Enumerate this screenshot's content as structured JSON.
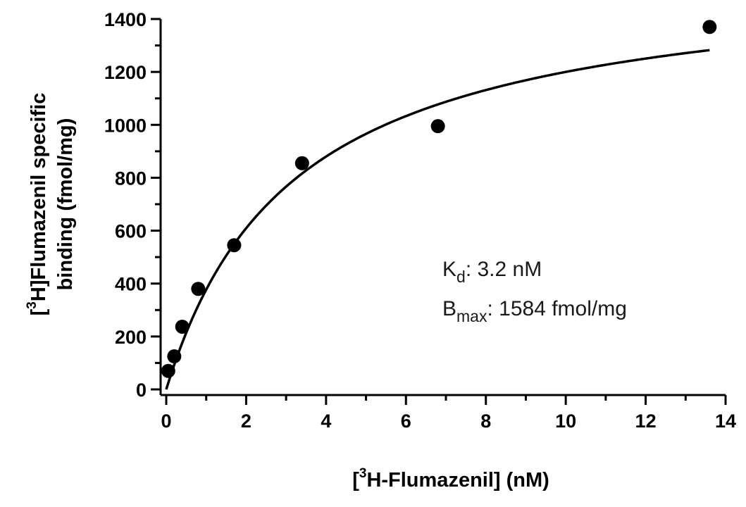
{
  "chart_data": {
    "type": "scatter",
    "xlabel_main": "H-Flumazenil] (nM)",
    "xlabel_prefix": "[",
    "xlabel_sup": "3",
    "ylabel_line1_prefix": "[",
    "ylabel_line1_sup": "3",
    "ylabel_line1_main": "H]Flumazenil specific",
    "ylabel_line2": "binding  (fmol/mg)",
    "xlim": [
      0,
      14
    ],
    "ylim": [
      0,
      1400
    ],
    "x_ticks": [
      0,
      2,
      4,
      6,
      8,
      10,
      12,
      14
    ],
    "y_ticks": [
      0,
      200,
      400,
      600,
      800,
      1000,
      1200,
      1400
    ],
    "series": [
      {
        "x": [
          0.05,
          0.2,
          0.4,
          0.8,
          1.7,
          3.4,
          6.8,
          13.6
        ],
        "y": [
          70,
          125,
          237,
          380,
          545,
          855,
          995,
          1370
        ]
      }
    ],
    "fit": {
      "model": "one-site hyperbola",
      "Kd": 3.2,
      "Bmax": 1584,
      "x_max": 13.6
    },
    "annotations": {
      "kd_prefix": "K",
      "kd_sub": "d",
      "kd_value": ": 3.2 nM",
      "bmax_prefix": "B",
      "bmax_sub": "max",
      "bmax_value": ":  1584 fmol/mg"
    }
  }
}
